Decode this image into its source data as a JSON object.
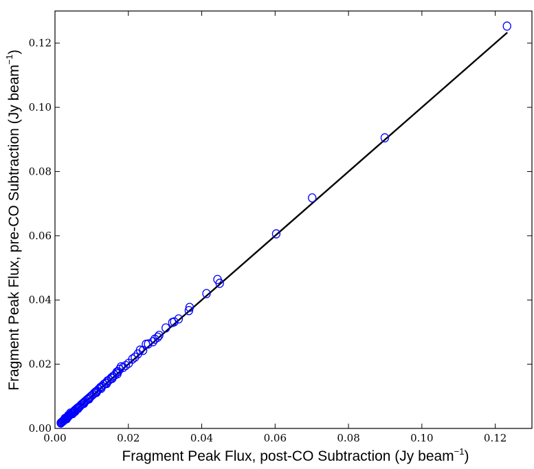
{
  "chart_data": {
    "type": "scatter",
    "xlabel": {
      "main": "Fragment Peak Flux, post-CO Subtraction (Jy beam",
      "sup": "−1",
      "end": ")"
    },
    "ylabel": {
      "main": "Fragment Peak Flux, pre-CO Subtraction (Jy beam",
      "sup": "−1",
      "end": ")"
    },
    "xlim": [
      0.0,
      0.13
    ],
    "ylim": [
      0.0,
      0.13
    ],
    "xticks": [
      "0.00",
      "0.02",
      "0.04",
      "0.06",
      "0.08",
      "0.10",
      "0.12"
    ],
    "yticks": [
      "0.00",
      "0.02",
      "0.04",
      "0.06",
      "0.08",
      "0.10",
      "0.12"
    ],
    "grid": false,
    "marker_color": "#0000ff",
    "line_color": "#000000",
    "fit_line": {
      "x": [
        0.0015,
        0.1233
      ],
      "y": [
        0.0015,
        0.1233
      ]
    },
    "points": [
      [
        0.1232,
        0.1253
      ],
      [
        0.0899,
        0.0905
      ],
      [
        0.0701,
        0.0718
      ],
      [
        0.0603,
        0.0606
      ],
      [
        0.0449,
        0.0452
      ],
      [
        0.0443,
        0.0464
      ],
      [
        0.0413,
        0.042
      ],
      [
        0.0367,
        0.0377
      ],
      [
        0.0365,
        0.0367
      ],
      [
        0.0337,
        0.0341
      ],
      [
        0.0325,
        0.0332
      ],
      [
        0.032,
        0.033
      ],
      [
        0.0302,
        0.0313
      ],
      [
        0.0284,
        0.029
      ],
      [
        0.028,
        0.0284
      ],
      [
        0.0272,
        0.0278
      ],
      [
        0.0267,
        0.027
      ],
      [
        0.0254,
        0.0263
      ],
      [
        0.0248,
        0.0262
      ],
      [
        0.024,
        0.0243
      ],
      [
        0.0232,
        0.0244
      ],
      [
        0.0226,
        0.0232
      ],
      [
        0.0218,
        0.0222
      ],
      [
        0.0211,
        0.0216
      ],
      [
        0.0201,
        0.0203
      ],
      [
        0.0193,
        0.0196
      ],
      [
        0.0186,
        0.019
      ],
      [
        0.018,
        0.0192
      ],
      [
        0.0176,
        0.0184
      ],
      [
        0.0172,
        0.0177
      ],
      [
        0.0168,
        0.0175
      ],
      [
        0.0163,
        0.0166
      ],
      [
        0.0158,
        0.0162
      ],
      [
        0.0153,
        0.0157
      ],
      [
        0.0148,
        0.0151
      ],
      [
        0.0143,
        0.0148
      ],
      [
        0.0138,
        0.0141
      ],
      [
        0.0133,
        0.0137
      ],
      [
        0.0128,
        0.0131
      ],
      [
        0.0124,
        0.0128
      ],
      [
        0.0119,
        0.0122
      ],
      [
        0.0115,
        0.0117
      ],
      [
        0.0111,
        0.0114
      ],
      [
        0.0107,
        0.011
      ],
      [
        0.0103,
        0.0105
      ],
      [
        0.0099,
        0.0101
      ],
      [
        0.0095,
        0.0097
      ],
      [
        0.0091,
        0.0093
      ],
      [
        0.0088,
        0.009
      ],
      [
        0.0084,
        0.0086
      ],
      [
        0.0081,
        0.0083
      ],
      [
        0.0077,
        0.0079
      ],
      [
        0.0074,
        0.0076
      ],
      [
        0.0071,
        0.0073
      ],
      [
        0.0068,
        0.0069
      ],
      [
        0.0065,
        0.0066
      ],
      [
        0.0062,
        0.0064
      ],
      [
        0.0059,
        0.0061
      ],
      [
        0.0056,
        0.0058
      ],
      [
        0.0053,
        0.0055
      ],
      [
        0.0051,
        0.0052
      ],
      [
        0.0048,
        0.005
      ],
      [
        0.0046,
        0.0047
      ],
      [
        0.0044,
        0.0045
      ],
      [
        0.0041,
        0.0043
      ],
      [
        0.0039,
        0.0041
      ],
      [
        0.0037,
        0.0038
      ],
      [
        0.0035,
        0.0036
      ],
      [
        0.0033,
        0.0034
      ],
      [
        0.0031,
        0.0032
      ],
      [
        0.0029,
        0.003
      ],
      [
        0.0027,
        0.0028
      ],
      [
        0.0025,
        0.0026
      ],
      [
        0.0023,
        0.0024
      ],
      [
        0.0021,
        0.0022
      ],
      [
        0.0019,
        0.002
      ],
      [
        0.0017,
        0.0018
      ],
      [
        0.0016,
        0.0017
      ],
      [
        0.0042,
        0.0048
      ],
      [
        0.0036,
        0.004
      ],
      [
        0.0055,
        0.0053
      ],
      [
        0.0063,
        0.0062
      ],
      [
        0.0079,
        0.0078
      ],
      [
        0.0093,
        0.0092
      ],
      [
        0.0113,
        0.0112
      ],
      [
        0.0126,
        0.0125
      ],
      [
        0.0141,
        0.014
      ],
      [
        0.0156,
        0.0156
      ],
      [
        0.017,
        0.017
      ],
      [
        0.0027,
        0.0031
      ],
      [
        0.0032,
        0.003
      ],
      [
        0.0048,
        0.0046
      ]
    ]
  }
}
